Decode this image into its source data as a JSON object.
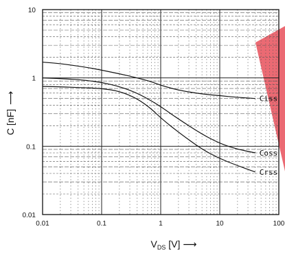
{
  "chart_data": {
    "type": "line",
    "title": "",
    "xlabel": {
      "main": "V",
      "sub": "DS",
      "unit": " [V]",
      "arrow": "⟶"
    },
    "ylabel": {
      "text": "C [nF]",
      "arrow": "⟶"
    },
    "x_scale": "log",
    "y_scale": "log",
    "xlim": [
      0.01,
      100
    ],
    "ylim": [
      0.01,
      10
    ],
    "x_ticks": [
      0.01,
      0.1,
      1,
      10,
      100
    ],
    "x_tick_labels": [
      "0.01",
      "0.1",
      "1",
      "10",
      "100"
    ],
    "y_ticks": [
      0.01,
      0.1,
      1,
      10
    ],
    "y_tick_labels": [
      "0.01",
      "0.1",
      "1",
      "10"
    ],
    "grid": true,
    "series": [
      {
        "name": "Ciss",
        "x": [
          0.01,
          0.02,
          0.05,
          0.1,
          0.2,
          0.4,
          0.7,
          1,
          2,
          5,
          10,
          20,
          40
        ],
        "y": [
          1.7,
          1.62,
          1.45,
          1.3,
          1.15,
          1.0,
          0.88,
          0.78,
          0.66,
          0.58,
          0.55,
          0.52,
          0.5
        ]
      },
      {
        "name": "Coss",
        "x": [
          0.01,
          0.02,
          0.05,
          0.1,
          0.2,
          0.4,
          0.7,
          1,
          2,
          5,
          10,
          20,
          40
        ],
        "y": [
          1.0,
          0.98,
          0.93,
          0.86,
          0.75,
          0.6,
          0.46,
          0.38,
          0.25,
          0.15,
          0.11,
          0.09,
          0.08
        ]
      },
      {
        "name": "Crss",
        "x": [
          0.01,
          0.02,
          0.05,
          0.1,
          0.2,
          0.4,
          0.7,
          1,
          2,
          5,
          10,
          20,
          40
        ],
        "y": [
          0.75,
          0.74,
          0.72,
          0.7,
          0.64,
          0.5,
          0.35,
          0.26,
          0.16,
          0.09,
          0.066,
          0.052,
          0.042
        ]
      }
    ],
    "colors": {
      "line": "#111111",
      "grid": "#555555",
      "watermark": "#e8505b"
    }
  }
}
